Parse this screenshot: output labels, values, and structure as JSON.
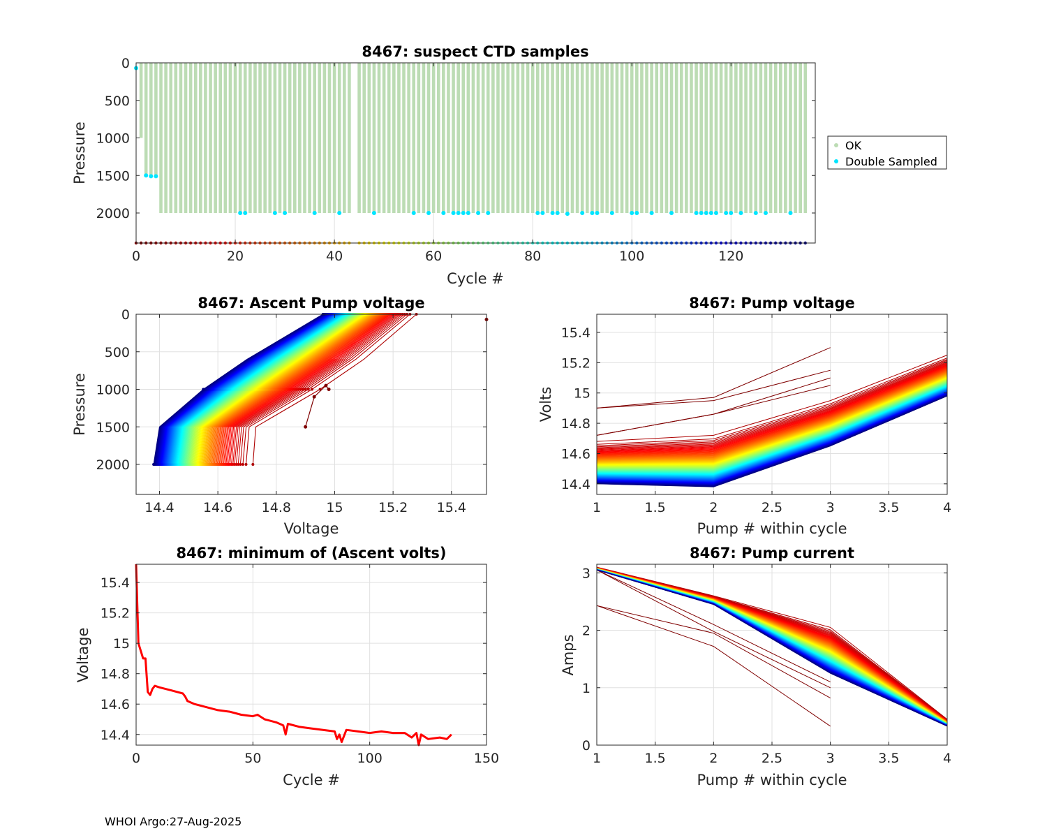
{
  "footer": "WHOI Argo:27-Aug-2025",
  "colors": {
    "ok": "#bcdcb4",
    "double_sampled": "#00e5ff",
    "min_volts_line": "#ff0000",
    "grid": "#e0e0e0",
    "cycle_colormap": "jet"
  },
  "chart_data": [
    {
      "id": "ctd",
      "type": "scatter",
      "title": "8467: suspect CTD samples",
      "xlabel": "Cycle #",
      "ylabel": "Pressure",
      "xlim": [
        0,
        137
      ],
      "ylim": [
        0,
        2400
      ],
      "y_reversed": true,
      "xticks": [
        "0",
        "20",
        "40",
        "60",
        "80",
        "100",
        "120"
      ],
      "yticks": [
        "0",
        "500",
        "1000",
        "1500",
        "2000"
      ],
      "legend": [
        "OK",
        "Double Sampled"
      ],
      "legend_position": "outside-right",
      "missing_cycles": [
        44
      ],
      "profile_bottom_pressure": 2000,
      "early_profiles": [
        {
          "cycle": 0,
          "bottom": 0
        },
        {
          "cycle": 1,
          "bottom": 1000
        },
        {
          "cycle": 2,
          "bottom": 1500
        },
        {
          "cycle": 3,
          "bottom": 1500
        },
        {
          "cycle": 4,
          "bottom": 1500
        }
      ],
      "double_sampled": [
        [
          0,
          70
        ],
        [
          2,
          1500
        ],
        [
          3,
          1510
        ],
        [
          4,
          1510
        ],
        [
          21,
          2000
        ],
        [
          22,
          2000
        ],
        [
          28,
          2000
        ],
        [
          30,
          2000
        ],
        [
          36,
          2000
        ],
        [
          41,
          2000
        ],
        [
          48,
          2000
        ],
        [
          56,
          2000
        ],
        [
          59,
          2000
        ],
        [
          62,
          2000
        ],
        [
          64,
          2000
        ],
        [
          65,
          2000
        ],
        [
          66,
          2000
        ],
        [
          67,
          2000
        ],
        [
          69,
          2000
        ],
        [
          71,
          2000
        ],
        [
          81,
          2000
        ],
        [
          82,
          2000
        ],
        [
          84,
          2000
        ],
        [
          85,
          2000
        ],
        [
          87,
          2010
        ],
        [
          90,
          2000
        ],
        [
          92,
          2000
        ],
        [
          93,
          2000
        ],
        [
          96,
          2000
        ],
        [
          100,
          2000
        ],
        [
          101,
          2000
        ],
        [
          104,
          2000
        ],
        [
          108,
          2000
        ],
        [
          113,
          2000
        ],
        [
          114,
          2000
        ],
        [
          115,
          2000
        ],
        [
          116,
          2000
        ],
        [
          117,
          2000
        ],
        [
          119,
          2000
        ],
        [
          120,
          2000
        ],
        [
          122,
          2000
        ],
        [
          125,
          2000
        ],
        [
          127,
          2000
        ],
        [
          132,
          2000
        ]
      ]
    },
    {
      "id": "ascent",
      "type": "line",
      "title": "8467: Ascent Pump voltage",
      "xlabel": "Voltage",
      "ylabel": "Pressure",
      "xlim": [
        14.32,
        15.52
      ],
      "ylim": [
        0,
        2400
      ],
      "y_reversed": true,
      "xticks": [
        "14.4",
        "14.6",
        "14.8",
        "15",
        "15.2",
        "15.4"
      ],
      "yticks": [
        "0",
        "500",
        "1000",
        "1500",
        "2000"
      ],
      "profile_pressures": [
        2000,
        1500,
        1000,
        600,
        0
      ],
      "early_profile": {
        "voltages": [
          15.52
        ],
        "pressures": [
          70
        ]
      },
      "anomalous_profile": {
        "voltages": [
          14.9,
          14.93,
          14.97,
          14.98
        ],
        "pressures": [
          1500,
          1100,
          950,
          1000
        ]
      },
      "first_cycle_voltages": [
        14.72,
        14.73,
        14.95,
        15.1,
        15.28
      ],
      "last_cycle_voltages": [
        14.38,
        14.4,
        14.55,
        14.7,
        14.96
      ]
    },
    {
      "id": "pumpv",
      "type": "line",
      "title": "8467: Pump voltage",
      "xlabel": "Pump # within cycle",
      "ylabel": "Volts",
      "xlim": [
        1,
        4
      ],
      "ylim": [
        14.33,
        15.52
      ],
      "xticks": [
        "1",
        "1.5",
        "2",
        "2.5",
        "3",
        "3.5",
        "4"
      ],
      "yticks": [
        "14.4",
        "14.6",
        "14.8",
        "15",
        "15.2",
        "15.4"
      ],
      "early_lines": [
        [
          14.9,
          14.97,
          15.3
        ],
        [
          14.9,
          14.95,
          15.15
        ],
        [
          14.72,
          14.86,
          15.1
        ],
        [
          14.72,
          14.86,
          15.05
        ]
      ],
      "first_cycle_volts": [
        14.68,
        14.72,
        14.95,
        15.25
      ],
      "last_cycle_volts": [
        14.4,
        14.38,
        14.65,
        14.98
      ]
    },
    {
      "id": "minv",
      "type": "line",
      "title": "8467: minimum of (Ascent volts)",
      "xlabel": "Cycle #",
      "ylabel": "Voltage",
      "xlim": [
        0,
        150
      ],
      "ylim": [
        14.33,
        15.52
      ],
      "xticks": [
        "0",
        "50",
        "100",
        "150"
      ],
      "yticks": [
        "14.4",
        "14.6",
        "14.8",
        "15",
        "15.2",
        "15.4"
      ],
      "x": [
        0,
        0.5,
        1,
        2,
        3,
        4,
        5,
        6,
        7,
        8,
        10,
        15,
        20,
        21,
        22,
        25,
        30,
        35,
        40,
        45,
        50,
        52,
        55,
        60,
        63,
        64,
        65,
        70,
        75,
        80,
        85,
        86,
        87,
        88,
        90,
        95,
        100,
        105,
        110,
        115,
        118,
        120,
        121,
        122,
        125,
        130,
        133,
        135
      ],
      "y": [
        15.52,
        15.25,
        15.0,
        14.95,
        14.9,
        14.9,
        14.68,
        14.66,
        14.7,
        14.72,
        14.71,
        14.69,
        14.67,
        14.65,
        14.62,
        14.6,
        14.58,
        14.56,
        14.55,
        14.53,
        14.52,
        14.53,
        14.5,
        14.48,
        14.46,
        14.4,
        14.47,
        14.45,
        14.44,
        14.43,
        14.42,
        14.37,
        14.4,
        14.35,
        14.43,
        14.42,
        14.41,
        14.42,
        14.41,
        14.41,
        14.38,
        14.41,
        14.33,
        14.4,
        14.37,
        14.38,
        14.37,
        14.4
      ]
    },
    {
      "id": "pumpc",
      "type": "line",
      "title": "8467: Pump current",
      "xlabel": "Pump # within cycle",
      "ylabel": "Amps",
      "xlim": [
        1,
        4
      ],
      "ylim": [
        0,
        3.15
      ],
      "xticks": [
        "1",
        "1.5",
        "2",
        "2.5",
        "3",
        "3.5",
        "4"
      ],
      "yticks": [
        "0",
        "1",
        "2",
        "3"
      ],
      "early_lines": [
        [
          2.43,
          1.72,
          0.33
        ],
        [
          2.43,
          1.95,
          0.82
        ],
        [
          3.05,
          1.98,
          1.0
        ],
        [
          3.05,
          2.1,
          1.1
        ]
      ],
      "first_cycle_amps": [
        3.1,
        2.6,
        2.05,
        0.45
      ],
      "last_cycle_amps": [
        3.05,
        2.45,
        1.25,
        0.33
      ]
    }
  ]
}
